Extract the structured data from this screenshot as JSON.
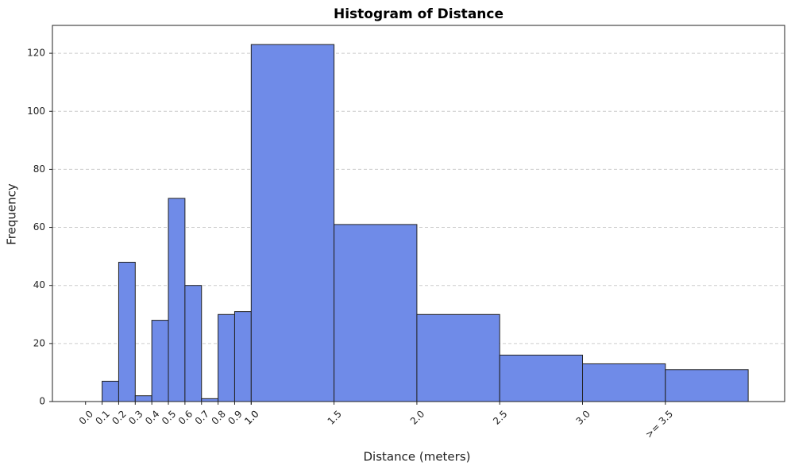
{
  "chart_data": {
    "type": "histogram",
    "title": "Histogram of Distance",
    "xlabel": "Distance (meters)",
    "ylabel": "Frequency",
    "bins": [
      0,
      0.1,
      0.2,
      0.3,
      0.4,
      0.5,
      0.6,
      0.7,
      0.8,
      0.9,
      1.0,
      1.5,
      2.0,
      2.5,
      3.0,
      3.5,
      4.0
    ],
    "values": [
      0,
      7,
      48,
      2,
      28,
      70,
      40,
      1,
      30,
      31,
      123,
      61,
      30,
      16,
      13,
      11
    ],
    "color": "#6f8be8",
    "edgecolor": "#222222",
    "xlim": [
      -0.2,
      4.22
    ],
    "ylim": [
      0,
      129.6
    ],
    "xticks": [
      {
        "value": 0,
        "label": "0.0"
      },
      0.1,
      0.2,
      0.3,
      0.4,
      0.5,
      0.6,
      0.7,
      0.8,
      0.9,
      {
        "value": 1,
        "label": "1.0"
      },
      {
        "value": 1,
        "label": "1.0"
      },
      1.5,
      {
        "value": 2,
        "label": "2.0"
      },
      2.5,
      {
        "value": 3,
        "label": "3.0"
      },
      {
        "value": 3.5,
        "label": ">= 3.5"
      }
    ],
    "yticks": [
      0,
      20,
      40,
      60,
      80,
      100,
      120
    ],
    "grid": true
  }
}
